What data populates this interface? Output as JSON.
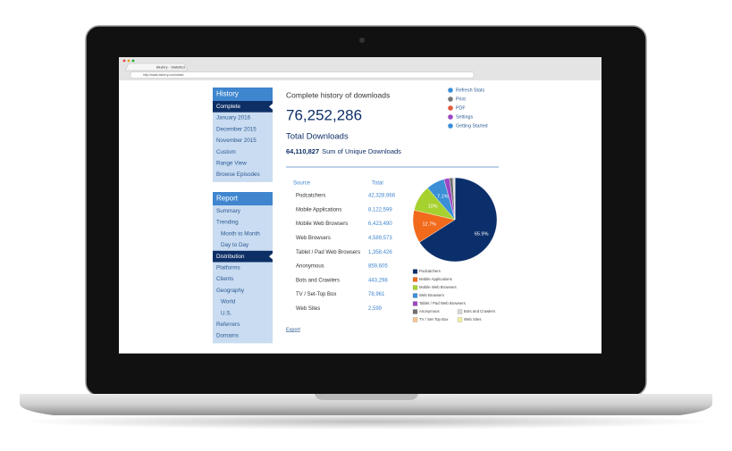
{
  "browser": {
    "tab_title": "Blubrry - Statistics",
    "url": "http://stats.blubrry.com/stats/"
  },
  "sidebar": {
    "history": {
      "title": "History",
      "active_item": 0,
      "items": [
        "Complete",
        "January 2016",
        "December 2015",
        "November 2015",
        "Custom",
        "Range View",
        "Browse Episodes"
      ]
    },
    "report": {
      "title": "Report",
      "active_item": 4,
      "items": [
        "Summary",
        "Trending",
        "Month to Month",
        "Day to Day",
        "Distribution",
        "Platforms",
        "Clients",
        "Geography",
        "World",
        "U.S.",
        "Referrers",
        "Domains"
      ]
    }
  },
  "main": {
    "heading": "Complete history of downloads",
    "total": "76,252,286",
    "total_label": "Total Downloads",
    "unique": "64,110,827",
    "unique_label": "Sum of Unique Downloads",
    "links": [
      "Refresh Stats",
      "Print",
      "PDF",
      "Settings",
      "Getting Started"
    ],
    "table": {
      "header": [
        "Source",
        "Total"
      ],
      "rows": [
        [
          "Podcatchers",
          "42,328,966"
        ],
        [
          "Mobile Applications",
          "8,122,599"
        ],
        [
          "Mobile Web Browsers",
          "6,423,490"
        ],
        [
          "Web Browsers",
          "4,589,573"
        ],
        [
          "Tablet / Pad Web Browsers",
          "1,358,426"
        ],
        [
          "Anonymous",
          "859,605"
        ],
        [
          "Bots and Crawlers",
          "443,298"
        ],
        [
          "TV / Set-Top Box",
          "78,961"
        ],
        [
          "Web Sites",
          "2,599"
        ]
      ]
    },
    "export": "Export"
  },
  "chart_data": {
    "type": "pie",
    "categories": [
      "Podcatchers",
      "Mobile Applications",
      "Mobile Web Browsers",
      "Web Browsers",
      "Tablet / Pad Web Browsers",
      "Anonymous",
      "Bots and Crawlers",
      "TV / Set-Top Box",
      "Web Sites"
    ],
    "values": [
      65.9,
      12.7,
      10,
      7.1,
      2.1,
      1.3,
      0.7,
      0.1,
      0
    ],
    "value_labels": [
      "65.9%",
      "12.7%",
      "10%",
      "7.1%",
      null,
      null,
      null,
      null,
      null
    ],
    "colors": [
      "#0b2f6b",
      "#f26a1b",
      "#a7d12f",
      "#3a8fd6",
      "#9b46c2",
      "#6e6e6e",
      "#d6d6d6",
      "#f6c38e",
      "#eeee9e"
    ]
  }
}
